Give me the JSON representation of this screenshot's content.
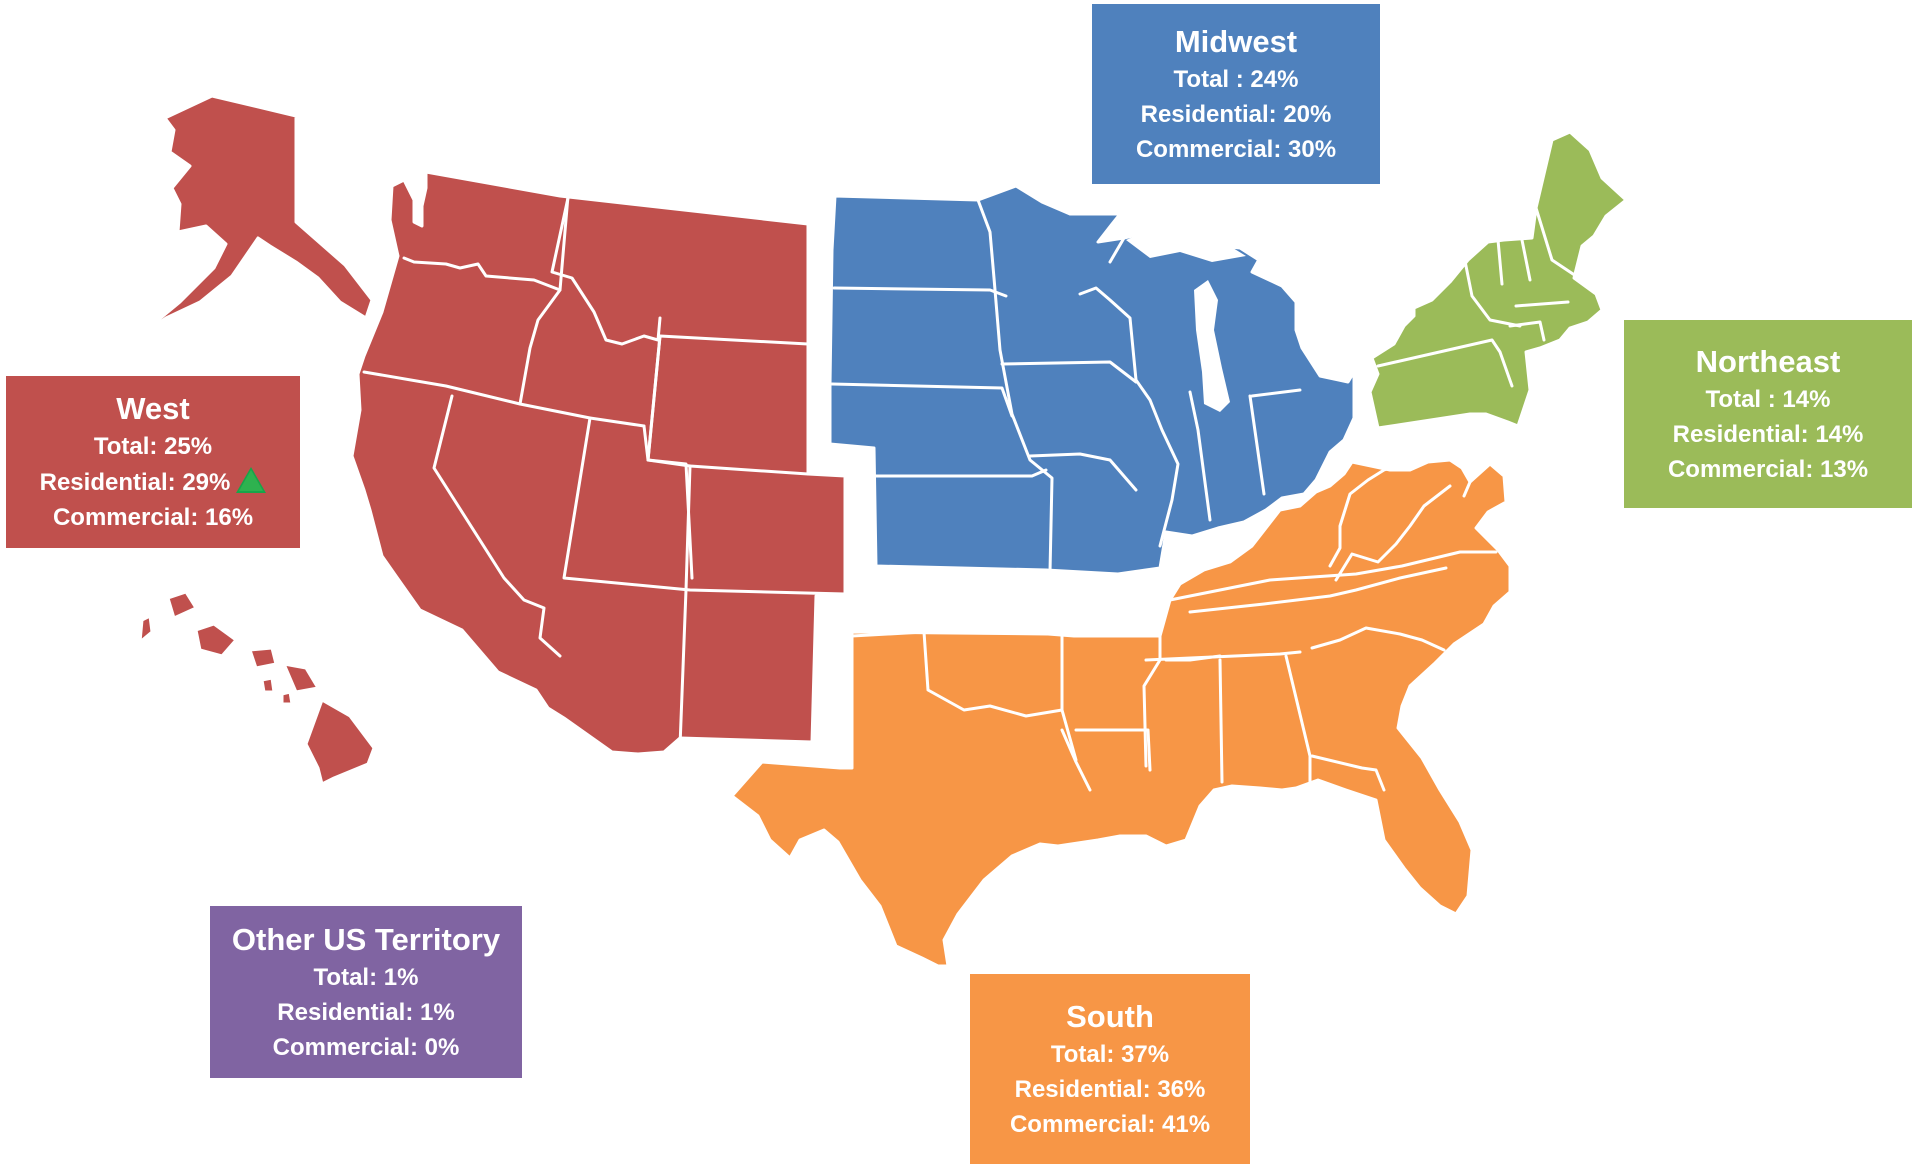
{
  "colors": {
    "west": "#c0504d",
    "midwest": "#4f81bd",
    "northeast": "#9bbb59",
    "south": "#f79646",
    "other": "#8064a2",
    "up_indicator": "#17a54a"
  },
  "regions": {
    "west": {
      "name": "West",
      "total": "Total: 25%",
      "residential": "Residential: 29%",
      "commercial": "Commercial: 16%",
      "residential_trend_icon": "up-triangle-icon"
    },
    "midwest": {
      "name": "Midwest",
      "total": "Total : 24%",
      "residential": "Residential: 20%",
      "commercial": "Commercial: 30%"
    },
    "northeast": {
      "name": "Northeast",
      "total": "Total : 14%",
      "residential": "Residential: 14%",
      "commercial": "Commercial: 13%"
    },
    "south": {
      "name": "South",
      "total": "Total: 37%",
      "residential": "Residential: 36%",
      "commercial": "Commercial: 41%"
    },
    "other": {
      "name": "Other US Territory",
      "total": "Total: 1%",
      "residential": "Residential: 1%",
      "commercial": "Commercial: 0%"
    }
  }
}
